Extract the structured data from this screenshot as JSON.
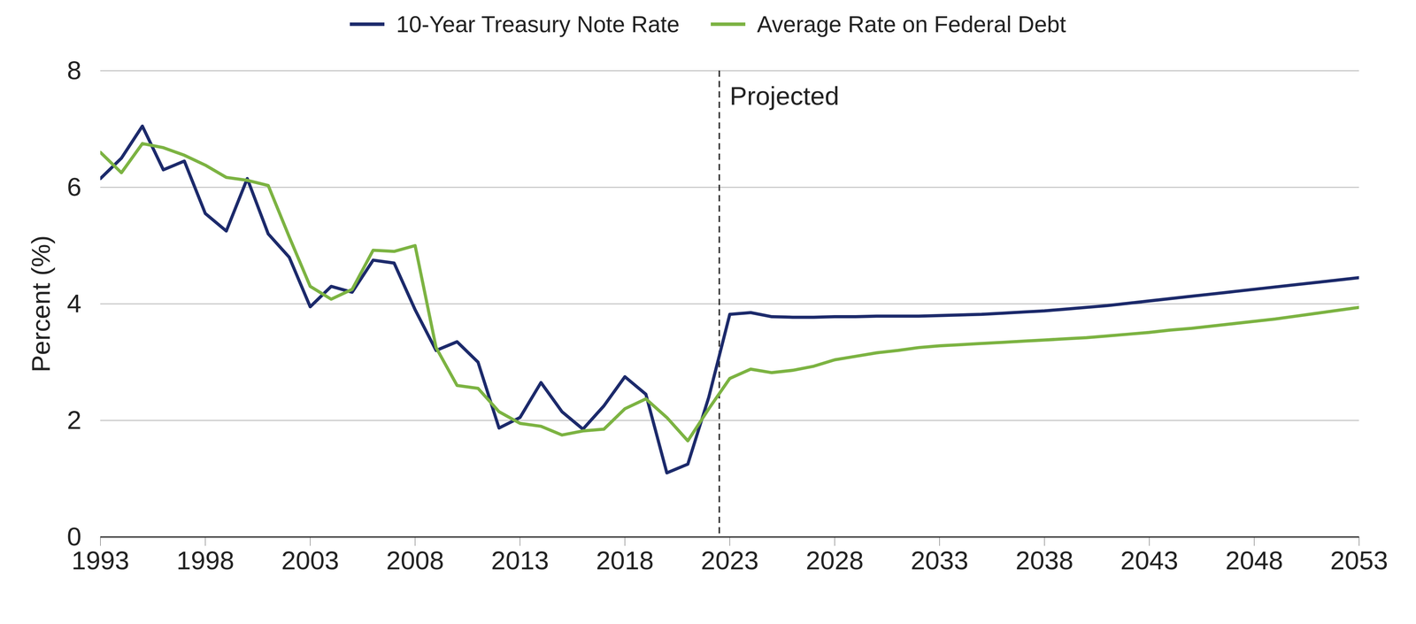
{
  "chart_data": {
    "type": "line",
    "y_label": "Percent (%)",
    "x": [
      1993,
      1994,
      1995,
      1996,
      1997,
      1998,
      1999,
      2000,
      2001,
      2002,
      2003,
      2004,
      2005,
      2006,
      2007,
      2008,
      2009,
      2010,
      2011,
      2012,
      2013,
      2014,
      2015,
      2016,
      2017,
      2018,
      2019,
      2020,
      2021,
      2022,
      2023,
      2024,
      2025,
      2026,
      2027,
      2028,
      2029,
      2030,
      2031,
      2032,
      2033,
      2034,
      2035,
      2036,
      2037,
      2038,
      2039,
      2040,
      2041,
      2042,
      2043,
      2044,
      2045,
      2046,
      2047,
      2048,
      2049,
      2050,
      2051,
      2052,
      2053
    ],
    "series": [
      {
        "name": "10-Year Treasury Note Rate",
        "color": "#1c2a6b",
        "values": [
          6.15,
          6.5,
          7.05,
          6.3,
          6.45,
          5.55,
          5.25,
          6.15,
          5.2,
          4.8,
          3.95,
          4.3,
          4.2,
          4.75,
          4.7,
          3.9,
          3.2,
          3.35,
          3.0,
          1.87,
          2.05,
          2.65,
          2.15,
          1.85,
          2.25,
          2.75,
          2.45,
          1.1,
          1.25,
          2.4,
          3.82,
          3.85,
          3.78,
          3.77,
          3.77,
          3.78,
          3.78,
          3.79,
          3.79,
          3.79,
          3.8,
          3.81,
          3.82,
          3.84,
          3.86,
          3.88,
          3.91,
          3.94,
          3.97,
          4.01,
          4.05,
          4.09,
          4.13,
          4.17,
          4.21,
          4.25,
          4.29,
          4.33,
          4.37,
          4.41,
          4.45
        ]
      },
      {
        "name": "Average Rate on Federal Debt",
        "color": "#7cb342",
        "values": [
          6.6,
          6.25,
          6.75,
          6.68,
          6.55,
          6.38,
          6.17,
          6.12,
          6.03,
          5.15,
          4.3,
          4.08,
          4.25,
          4.92,
          4.9,
          5.0,
          3.25,
          2.6,
          2.55,
          2.15,
          1.95,
          1.9,
          1.75,
          1.82,
          1.85,
          2.2,
          2.37,
          2.05,
          1.65,
          2.2,
          2.72,
          2.88,
          2.82,
          2.86,
          2.93,
          3.04,
          3.1,
          3.16,
          3.2,
          3.25,
          3.28,
          3.3,
          3.32,
          3.34,
          3.36,
          3.38,
          3.4,
          3.42,
          3.45,
          3.48,
          3.51,
          3.55,
          3.58,
          3.62,
          3.66,
          3.7,
          3.74,
          3.79,
          3.84,
          3.89,
          3.94
        ]
      }
    ],
    "xlim": [
      1993,
      2053
    ],
    "xticks": [
      1993,
      1998,
      2003,
      2008,
      2013,
      2018,
      2023,
      2028,
      2033,
      2038,
      2043,
      2048,
      2053
    ],
    "ylim": [
      0,
      8
    ],
    "yticks": [
      0,
      2,
      4,
      6,
      8
    ],
    "grid": true,
    "legend": "top",
    "annotations": [
      {
        "text": "Projected",
        "x": 2022.5
      }
    ]
  }
}
